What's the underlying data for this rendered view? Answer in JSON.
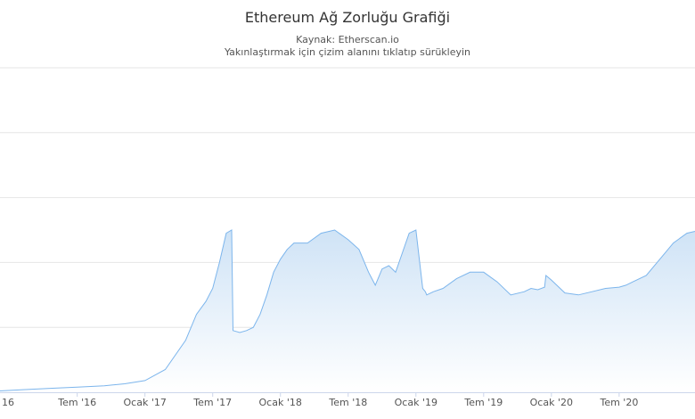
{
  "title": "Ethereum Ağ Zorluğu Grafiği",
  "subtitle": {
    "source": "Kaynak: Etherscan.io",
    "hint": "Yakınlaştırmak için çizim alanını tıklatıp sürükleyin"
  },
  "colors": {
    "line": "#7cb5ec",
    "fill_top": "#cfe3f6",
    "fill_bottom": "#ffffff",
    "grid": "#e6e6e6"
  },
  "chart_data": {
    "type": "area",
    "title": "Ethereum Ağ Zorluğu Grafiği",
    "subtitle": "Kaynak: Etherscan.io",
    "xlabel": "",
    "ylabel": "",
    "x_ticks": [
      "16",
      "Tem '16",
      "Ocak '17",
      "Tem '17",
      "Ocak '18",
      "Tem '18",
      "Ocak '19",
      "Tem '19",
      "Ocak '20",
      "Tem '20"
    ],
    "x_range": [
      2015.93,
      2021.06
    ],
    "y_range": [
      0,
      5
    ],
    "grid": true,
    "legend": "none",
    "series": [
      {
        "x": [
          2015.93,
          2016.1,
          2016.3,
          2016.5,
          2016.7,
          2016.85,
          2017.0,
          2017.15,
          2017.3,
          2017.38,
          2017.45,
          2017.5,
          2017.55,
          2017.6,
          2017.64,
          2017.65,
          2017.7,
          2017.75,
          2017.8,
          2017.85,
          2017.9,
          2017.95,
          2018.0,
          2018.05,
          2018.1,
          2018.2,
          2018.3,
          2018.4,
          2018.5,
          2018.58,
          2018.65,
          2018.7,
          2018.75,
          2018.8,
          2018.85,
          2018.9,
          2018.95,
          2019.0,
          2019.05,
          2019.07,
          2019.08,
          2019.13,
          2019.2,
          2019.3,
          2019.4,
          2019.5,
          2019.6,
          2019.7,
          2019.8,
          2019.85,
          2019.9,
          2019.95,
          2019.96,
          2020.0,
          2020.1,
          2020.2,
          2020.3,
          2020.4,
          2020.5,
          2020.55,
          2020.6,
          2020.7,
          2020.8,
          2020.9,
          2021.0,
          2021.06
        ],
        "y": [
          0.02,
          0.04,
          0.06,
          0.08,
          0.1,
          0.13,
          0.18,
          0.35,
          0.8,
          1.2,
          1.4,
          1.6,
          2.0,
          2.45,
          2.5,
          0.95,
          0.92,
          0.95,
          1.0,
          1.2,
          1.5,
          1.85,
          2.05,
          2.2,
          2.3,
          2.3,
          2.45,
          2.5,
          2.35,
          2.2,
          1.85,
          1.65,
          1.9,
          1.95,
          1.85,
          2.15,
          2.45,
          2.5,
          1.6,
          1.55,
          1.5,
          1.55,
          1.6,
          1.75,
          1.85,
          1.85,
          1.7,
          1.5,
          1.55,
          1.6,
          1.58,
          1.62,
          1.8,
          1.73,
          1.53,
          1.5,
          1.55,
          1.6,
          1.62,
          1.65,
          1.7,
          1.8,
          2.05,
          2.3,
          2.45,
          2.48
        ]
      }
    ]
  }
}
